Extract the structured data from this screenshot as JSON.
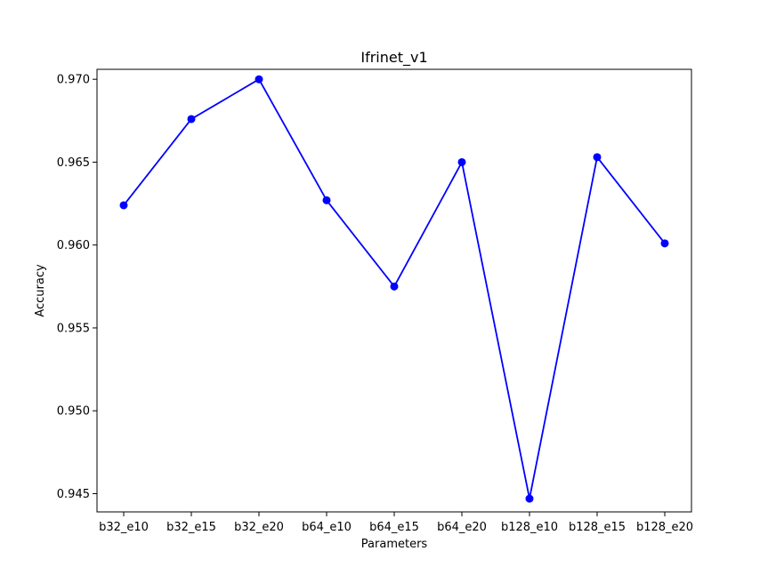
{
  "chart_data": {
    "type": "line",
    "title": "Ifrinet_v1",
    "xlabel": "Parameters",
    "ylabel": "Accuracy",
    "categories": [
      "b32_e10",
      "b32_e15",
      "b32_e20",
      "b64_e10",
      "b64_e15",
      "b64_e20",
      "b128_e10",
      "b128_e15",
      "b128_e20"
    ],
    "series": [
      {
        "values": [
          0.9624,
          0.9676,
          0.97,
          0.9627,
          0.9575,
          0.965,
          0.9447,
          0.9653,
          0.9601
        ]
      }
    ],
    "ylim": [
      0.9439,
      0.9706
    ],
    "yticks": [
      "0.945",
      "0.950",
      "0.955",
      "0.960",
      "0.965",
      "0.970"
    ],
    "line_color": "#0000ff",
    "marker": "circle",
    "grid": false,
    "legend": "none"
  }
}
